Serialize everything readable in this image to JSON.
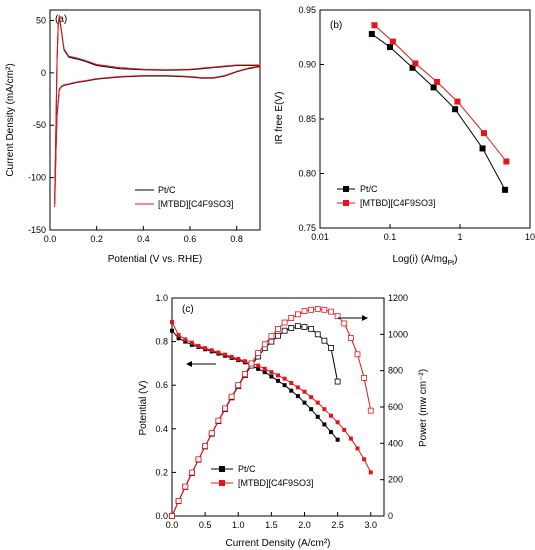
{
  "colors": {
    "black": "#000000",
    "red": "#e8131a",
    "frame": "#000000"
  },
  "chart_data": [
    {
      "panel_label": "(a)",
      "type": "line",
      "title": "",
      "xlabel": "Potential (V vs. RHE)",
      "ylabel": "Current Density (mA/cm²)",
      "xlim": [
        0.0,
        0.9
      ],
      "ylim": [
        -150,
        60
      ],
      "xticks": [
        "0.0",
        "0.2",
        "0.4",
        "0.6",
        "0.8"
      ],
      "yticks": [
        "50",
        "0",
        "-50",
        "-100",
        "-150"
      ],
      "legend": {
        "placement": "bottom-right",
        "entries": [
          "Pt/C",
          "[MTBD][C4F9SO3]"
        ]
      },
      "series": [
        {
          "name": "Pt/C",
          "color": "#000000",
          "anodic": {
            "x": [
              0.02,
              0.025,
              0.03,
              0.035,
              0.04,
              0.05,
              0.06,
              0.08,
              0.1,
              0.12,
              0.15,
              0.2,
              0.3,
              0.4,
              0.5,
              0.6,
              0.65,
              0.7,
              0.75,
              0.8,
              0.85,
              0.9
            ],
            "y": [
              -120,
              -60,
              10,
              45,
              54,
              38,
              22,
              15,
              14,
              13,
              11,
              7,
              4,
              3,
              2.5,
              3,
              4,
              5,
              6,
              7,
              7,
              7
            ]
          },
          "cathodic": {
            "x": [
              0.9,
              0.85,
              0.8,
              0.75,
              0.7,
              0.65,
              0.6,
              0.5,
              0.4,
              0.3,
              0.2,
              0.15,
              0.12,
              0.1,
              0.08,
              0.06,
              0.05,
              0.04,
              0.03,
              0.025,
              0.02
            ],
            "y": [
              6,
              4,
              1,
              -3,
              -5,
              -5,
              -4,
              -3,
              -3,
              -4,
              -6,
              -8,
              -9,
              -10,
              -11,
              -12,
              -13,
              -16,
              -40,
              -80,
              -125
            ]
          }
        },
        {
          "name": "[MTBD][C4F9SO3]",
          "color": "#e8131a",
          "anodic": {
            "x": [
              0.02,
              0.025,
              0.03,
              0.035,
              0.04,
              0.05,
              0.06,
              0.08,
              0.1,
              0.12,
              0.15,
              0.2,
              0.3,
              0.4,
              0.5,
              0.6,
              0.65,
              0.7,
              0.75,
              0.8,
              0.85,
              0.9
            ],
            "y": [
              -122,
              -60,
              12,
              46,
              55,
              39,
              23,
              16,
              15,
              14,
              12,
              8,
              5,
              3.5,
              3,
              3.5,
              4.5,
              5.5,
              6.5,
              7.5,
              7.5,
              7.5
            ]
          },
          "cathodic": {
            "x": [
              0.9,
              0.85,
              0.8,
              0.75,
              0.7,
              0.65,
              0.6,
              0.5,
              0.4,
              0.3,
              0.2,
              0.15,
              0.12,
              0.1,
              0.08,
              0.06,
              0.05,
              0.04,
              0.03,
              0.025,
              0.02
            ],
            "y": [
              6.5,
              4.5,
              1.5,
              -2.5,
              -4.5,
              -4.5,
              -3.5,
              -2.5,
              -2.5,
              -3.5,
              -5.5,
              -7.5,
              -8.5,
              -9.5,
              -10.5,
              -11.5,
              -12.5,
              -15.5,
              -42,
              -82,
              -128
            ]
          }
        }
      ]
    },
    {
      "panel_label": "(b)",
      "type": "line",
      "title": "",
      "xlabel": "Log(i) (A/mg",
      "xlabel_sub": "Pt",
      "xlabel_end": ")",
      "ylabel": "IR free E(V)",
      "xscale": "log",
      "xlim": [
        0.01,
        10
      ],
      "ylim": [
        0.75,
        0.95
      ],
      "xticks": [
        "0.01",
        "0.1",
        "1",
        "10"
      ],
      "yticks": [
        "0.95",
        "0.90",
        "0.85",
        "0.80",
        "0.75"
      ],
      "legend": {
        "placement": "bottom-left",
        "entries": [
          "Pt/C",
          "[MTBD][C4F9SO3]"
        ]
      },
      "series": [
        {
          "name": "Pt/C",
          "color": "#000000",
          "marker": "square-filled",
          "x": [
            0.055,
            0.1,
            0.21,
            0.42,
            0.85,
            2.1,
            4.4
          ],
          "y": [
            0.928,
            0.916,
            0.897,
            0.879,
            0.859,
            0.823,
            0.785
          ]
        },
        {
          "name": "[MTBD][C4F9SO3]",
          "color": "#e8131a",
          "marker": "square-filled",
          "x": [
            0.06,
            0.11,
            0.23,
            0.47,
            0.92,
            2.2,
            4.6
          ],
          "y": [
            0.936,
            0.921,
            0.901,
            0.884,
            0.866,
            0.837,
            0.811
          ]
        }
      ]
    },
    {
      "panel_label": "(c)",
      "type": "line",
      "title": "",
      "xlabel": "Current Density (A/cm²)",
      "ylabel": "Potential (V)",
      "ylabel_right": "Power (mw cm⁻²)",
      "xlim": [
        0.0,
        3.2
      ],
      "ylim": [
        0.0,
        1.0
      ],
      "ylim_right": [
        0,
        1200
      ],
      "xticks": [
        "0.0",
        "0.5",
        "1.0",
        "1.5",
        "2.0",
        "2.5",
        "3.0"
      ],
      "yticks": [
        "0.0",
        "0.2",
        "0.4",
        "0.6",
        "0.8",
        "1.0"
      ],
      "yticks_right": [
        "0",
        "200",
        "400",
        "600",
        "800",
        "1000",
        "1200"
      ],
      "legend": {
        "placement": "bottom-left",
        "entries": [
          "Pt/C",
          "[MTBD][C4F9SO3]"
        ]
      },
      "series": [
        {
          "name": "Pt/C",
          "color": "#000000",
          "marker": "square-filled",
          "axis": "left",
          "x": [
            0.0,
            0.1,
            0.2,
            0.3,
            0.4,
            0.5,
            0.6,
            0.7,
            0.8,
            0.9,
            1.0,
            1.1,
            1.2,
            1.3,
            1.4,
            1.5,
            1.6,
            1.7,
            1.8,
            1.9,
            2.0,
            2.1,
            2.2,
            2.3,
            2.4,
            2.5
          ],
          "y": [
            0.85,
            0.815,
            0.8,
            0.785,
            0.775,
            0.765,
            0.755,
            0.745,
            0.735,
            0.725,
            0.715,
            0.705,
            0.69,
            0.675,
            0.66,
            0.64,
            0.62,
            0.6,
            0.575,
            0.55,
            0.52,
            0.49,
            0.455,
            0.42,
            0.385,
            0.35
          ]
        },
        {
          "name": "[MTBD][C4F9SO3]",
          "color": "#e8131a",
          "marker": "square-filled",
          "axis": "left",
          "x": [
            0.0,
            0.1,
            0.2,
            0.3,
            0.4,
            0.5,
            0.6,
            0.7,
            0.8,
            0.9,
            1.0,
            1.1,
            1.2,
            1.3,
            1.4,
            1.5,
            1.6,
            1.7,
            1.8,
            1.9,
            2.0,
            2.1,
            2.2,
            2.3,
            2.4,
            2.5,
            2.6,
            2.7,
            2.8,
            2.9,
            3.0
          ],
          "y": [
            0.89,
            0.83,
            0.81,
            0.795,
            0.78,
            0.77,
            0.76,
            0.75,
            0.74,
            0.73,
            0.72,
            0.71,
            0.7,
            0.69,
            0.675,
            0.66,
            0.645,
            0.63,
            0.61,
            0.59,
            0.57,
            0.545,
            0.52,
            0.49,
            0.46,
            0.43,
            0.395,
            0.355,
            0.31,
            0.26,
            0.2
          ]
        },
        {
          "name": "",
          "color": "#000000",
          "marker": "square-open",
          "axis": "right",
          "x": [
            0.0,
            0.1,
            0.2,
            0.3,
            0.4,
            0.5,
            0.6,
            0.7,
            0.8,
            0.9,
            1.0,
            1.1,
            1.2,
            1.3,
            1.4,
            1.5,
            1.6,
            1.7,
            1.8,
            1.9,
            2.0,
            2.1,
            2.2,
            2.3,
            2.4,
            2.5
          ],
          "y": [
            0,
            82,
            160,
            236,
            310,
            383,
            453,
            522,
            588,
            653,
            715,
            776,
            828,
            878,
            924,
            960,
            992,
            1020,
            1035,
            1045,
            1040,
            1030,
            1000,
            965,
            925,
            740
          ]
        },
        {
          "name": "",
          "color": "#e8131a",
          "marker": "square-open",
          "axis": "right",
          "x": [
            0.0,
            0.1,
            0.2,
            0.3,
            0.4,
            0.5,
            0.6,
            0.7,
            0.8,
            0.9,
            1.0,
            1.1,
            1.2,
            1.3,
            1.4,
            1.5,
            1.6,
            1.7,
            1.8,
            1.9,
            2.0,
            2.1,
            2.2,
            2.3,
            2.4,
            2.5,
            2.6,
            2.7,
            2.8,
            2.9,
            3.0
          ],
          "y": [
            0,
            83,
            162,
            239,
            312,
            385,
            456,
            525,
            592,
            657,
            720,
            781,
            840,
            897,
            945,
            990,
            1030,
            1065,
            1090,
            1110,
            1128,
            1135,
            1140,
            1135,
            1125,
            1100,
            1060,
            980,
            890,
            760,
            580
          ]
        }
      ],
      "annotations": [
        {
          "text": "arrow-left",
          "target": "Potential"
        },
        {
          "text": "arrow-right",
          "target": "Power"
        }
      ]
    }
  ]
}
